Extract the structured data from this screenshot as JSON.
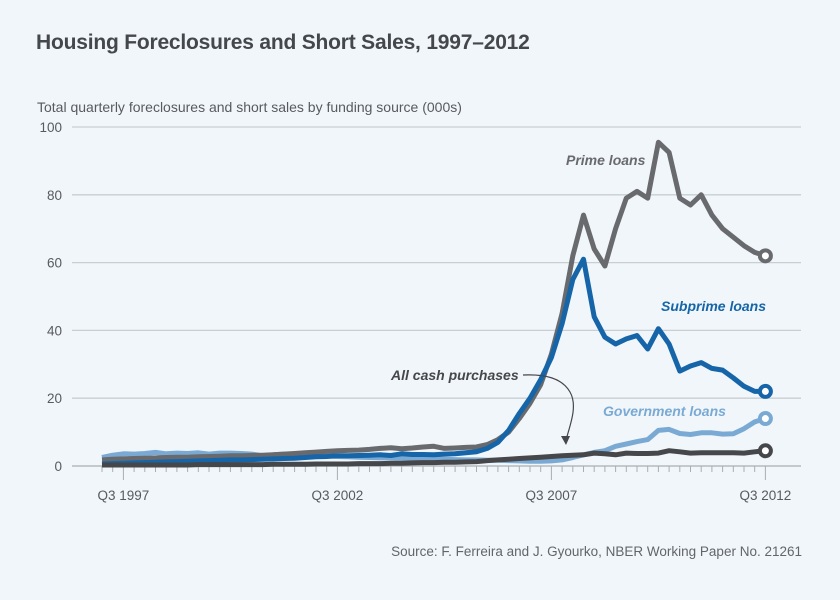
{
  "header": {
    "title": "Housing Foreclosures and Short Sales, 1997–2012",
    "ylabel": "Total quarterly foreclosures and short sales by funding source (000s)"
  },
  "footer": {
    "source": "Source: F. Ferreira and J. Gyourko, NBER Working Paper No. 21261"
  },
  "chart_data": {
    "type": "line",
    "title": "Housing Foreclosures and Short Sales, 1997–2012",
    "xlabel": "",
    "ylabel": "Total quarterly foreclosures and short sales by funding source (000s)",
    "x_start": "Q1 1997",
    "x_end": "Q3 2012",
    "x_frequency": "quarterly",
    "x_ticks": [
      "Q3 1997",
      "Q3 2002",
      "Q3 2007",
      "Q3 2012"
    ],
    "x_tick_indices": [
      2,
      22,
      42,
      62
    ],
    "y_ticks": [
      0,
      20,
      40,
      60,
      80,
      100
    ],
    "ylim": [
      0,
      100
    ],
    "grid": true,
    "legend": "inline labels",
    "series": [
      {
        "name": "Government loans",
        "label": "Government loans",
        "color": "#7aaad4",
        "values": [
          2.5,
          3.2,
          3.6,
          3.5,
          3.7,
          4.0,
          3.6,
          3.8,
          3.7,
          3.9,
          3.5,
          3.8,
          3.8,
          3.7,
          3.5,
          3.0,
          3.3,
          3.5,
          3.4,
          3.2,
          3.0,
          3.0,
          2.8,
          2.7,
          2.6,
          2.5,
          2.4,
          2.4,
          2.3,
          2.2,
          2.2,
          2.1,
          2.0,
          1.9,
          1.8,
          1.8,
          1.7,
          1.7,
          1.6,
          1.5,
          1.4,
          1.4,
          1.5,
          1.8,
          2.5,
          3.3,
          4.0,
          4.5,
          5.8,
          6.5,
          7.2,
          7.8,
          10.5,
          10.8,
          9.6,
          9.3,
          9.8,
          9.8,
          9.4,
          9.5,
          11.0,
          13.0,
          14.0
        ]
      },
      {
        "name": "Prime loans",
        "label": "Prime loans",
        "color": "#696a6d",
        "values": [
          1.8,
          2.0,
          2.1,
          2.2,
          2.3,
          2.4,
          2.5,
          2.6,
          2.6,
          2.7,
          2.8,
          2.9,
          3.0,
          3.0,
          3.1,
          3.2,
          3.3,
          3.5,
          3.7,
          3.9,
          4.1,
          4.3,
          4.5,
          4.6,
          4.7,
          4.9,
          5.2,
          5.4,
          5.1,
          5.3,
          5.6,
          5.8,
          5.2,
          5.3,
          5.5,
          5.6,
          6.3,
          7.8,
          10.0,
          14.0,
          18.5,
          24.0,
          33.0,
          45.0,
          62.0,
          74.0,
          64.0,
          59.0,
          70.0,
          79.0,
          81.0,
          79.0,
          95.5,
          92.5,
          79.0,
          77.0,
          80.0,
          74.0,
          70.0,
          67.5,
          65.0,
          63.0,
          62.0
        ]
      },
      {
        "name": "Subprime loans",
        "label": "Subprime loans",
        "color": "#1565a8",
        "values": [
          0.6,
          0.7,
          0.8,
          0.9,
          1.0,
          1.1,
          1.2,
          1.3,
          1.4,
          1.5,
          1.6,
          1.7,
          1.8,
          1.8,
          1.9,
          2.0,
          2.1,
          2.2,
          2.3,
          2.5,
          2.7,
          2.8,
          3.0,
          3.0,
          3.1,
          3.2,
          3.3,
          3.1,
          3.6,
          3.4,
          3.4,
          3.3,
          3.5,
          3.6,
          3.9,
          4.2,
          5.2,
          7.0,
          10.5,
          15.5,
          20.0,
          25.5,
          32.0,
          42.0,
          55.0,
          61.0,
          44.0,
          38.0,
          36.0,
          37.5,
          38.5,
          34.5,
          40.5,
          36.0,
          28.0,
          29.5,
          30.5,
          28.8,
          28.3,
          26.0,
          23.5,
          22.0,
          22.0
        ]
      },
      {
        "name": "All cash purchases",
        "label": "All cash purchases",
        "color": "#46474a",
        "values": [
          0.3,
          0.3,
          0.3,
          0.3,
          0.3,
          0.3,
          0.3,
          0.3,
          0.3,
          0.4,
          0.4,
          0.4,
          0.4,
          0.4,
          0.4,
          0.4,
          0.5,
          0.5,
          0.5,
          0.5,
          0.6,
          0.6,
          0.6,
          0.6,
          0.7,
          0.7,
          0.7,
          0.8,
          0.8,
          0.9,
          1.0,
          1.0,
          1.1,
          1.1,
          1.2,
          1.3,
          1.6,
          1.8,
          2.0,
          2.2,
          2.4,
          2.6,
          2.8,
          3.0,
          3.2,
          3.3,
          3.8,
          3.6,
          3.3,
          3.8,
          3.7,
          3.7,
          3.8,
          4.5,
          4.2,
          3.8,
          3.9,
          3.9,
          3.9,
          3.9,
          3.8,
          4.2,
          4.5
        ]
      }
    ],
    "annotations": [
      {
        "text": "Prime loans",
        "series": "Prime loans"
      },
      {
        "text": "Subprime loans",
        "series": "Subprime loans"
      },
      {
        "text": "Government loans",
        "series": "Government loans"
      },
      {
        "text": "All cash purchases",
        "series": "All cash purchases",
        "arrow": true
      }
    ]
  }
}
